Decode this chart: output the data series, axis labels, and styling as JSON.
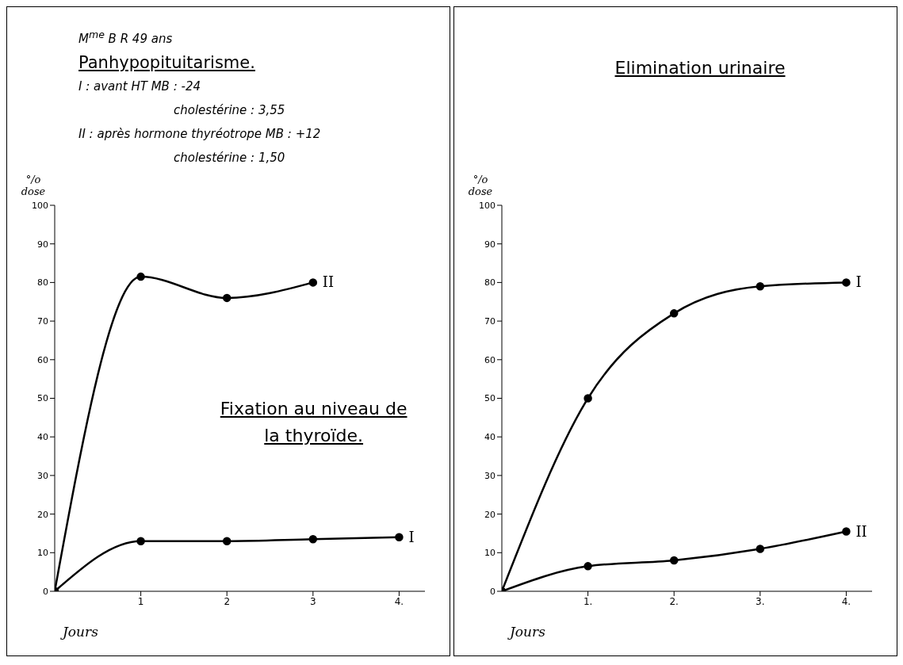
{
  "chart_data": [
    {
      "type": "line",
      "title": "Fixation au niveau de la thyroïde.",
      "xlabel": "Jours",
      "ylabel": "°/o dose",
      "annotations": [
        "M$^{me}$ B R 49 ans",
        "Panhypopituitarisme.",
        "I : avant HT     MB : -24",
        "cholestérine : 3,55",
        "II : après hormone thyréotrope     MB : +12",
        "cholestérine : 1,50"
      ],
      "xlim": [
        0,
        4.3
      ],
      "xticks": [
        {
          "value": 1,
          "label": "1"
        },
        {
          "value": 2,
          "label": "2"
        },
        {
          "value": 3,
          "label": "3"
        },
        {
          "value": 4,
          "label": "4."
        }
      ],
      "ylim": [
        0,
        100
      ],
      "yticks": [
        0,
        10,
        20,
        30,
        40,
        50,
        60,
        70,
        80,
        90,
        100
      ],
      "grid": false,
      "legend": false,
      "marker": "circle",
      "line_style": "solid",
      "series": [
        {
          "name": "II",
          "color": "#000000",
          "x": [
            0,
            1,
            2,
            3
          ],
          "values": [
            0,
            81.5,
            76,
            80
          ]
        },
        {
          "name": "I",
          "color": "#000000",
          "x": [
            0,
            1,
            2,
            3,
            4
          ],
          "values": [
            0,
            13,
            13,
            13.5,
            14
          ]
        }
      ]
    },
    {
      "type": "line",
      "title": "Elimination urinaire",
      "xlabel": "Jours",
      "ylabel": "°/o dose",
      "xlim": [
        0,
        4.3
      ],
      "xticks": [
        {
          "value": 1,
          "label": "1."
        },
        {
          "value": 2,
          "label": "2."
        },
        {
          "value": 3,
          "label": "3."
        },
        {
          "value": 4,
          "label": "4."
        }
      ],
      "ylim": [
        0,
        100
      ],
      "yticks": [
        0,
        10,
        20,
        30,
        40,
        50,
        60,
        70,
        80,
        90,
        100
      ],
      "grid": false,
      "legend": false,
      "marker": "circle",
      "line_style": "solid",
      "series": [
        {
          "name": "I",
          "color": "#000000",
          "x": [
            0,
            1,
            2,
            3,
            4
          ],
          "values": [
            0,
            50,
            72,
            79,
            80
          ]
        },
        {
          "name": "II",
          "color": "#000000",
          "x": [
            0,
            1,
            2,
            3,
            4
          ],
          "values": [
            0,
            6.5,
            8,
            11,
            15.5
          ]
        }
      ]
    }
  ]
}
